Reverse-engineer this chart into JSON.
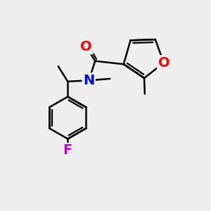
{
  "background_color": "#eeeeee",
  "bond_color": "#000000",
  "bond_width": 1.8,
  "atom_colors": {
    "O": "#ff0000",
    "N": "#0000dd",
    "F": "#cc00cc",
    "C": "#000000"
  },
  "font_size_atom": 14,
  "figsize": [
    3.0,
    3.0
  ],
  "dpi": 100
}
